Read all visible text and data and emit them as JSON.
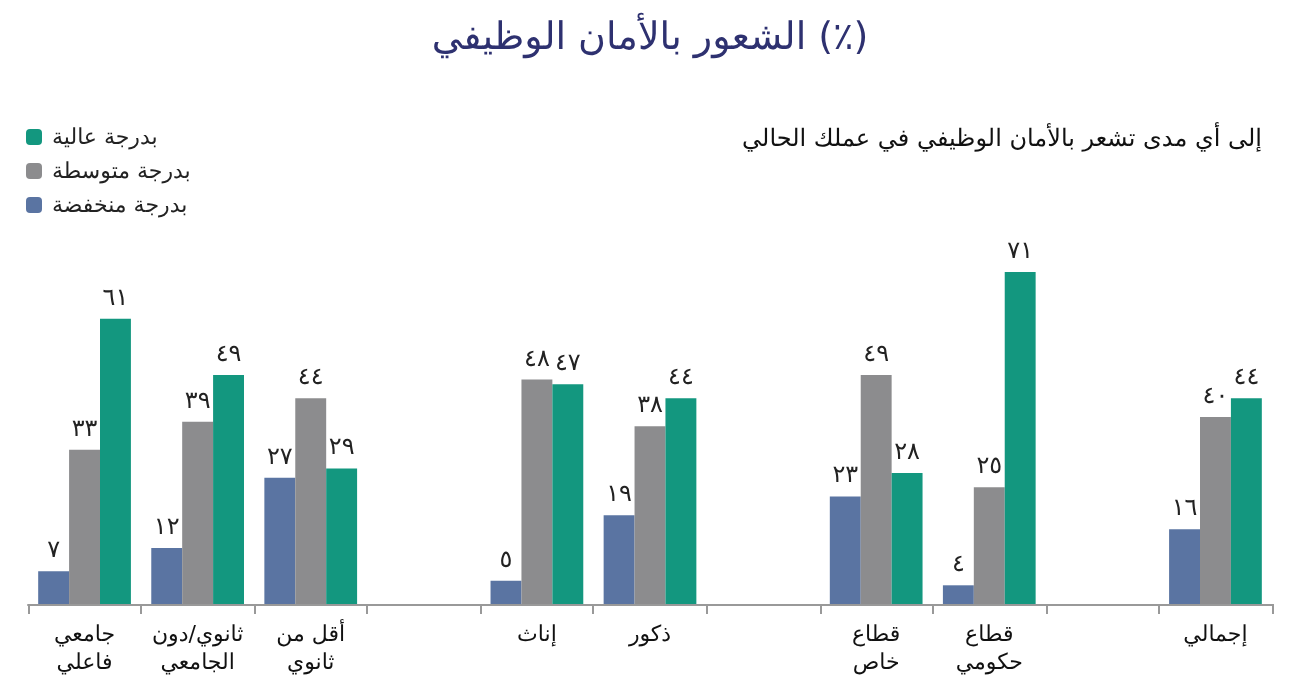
{
  "chart_data": {
    "type": "bar",
    "title": "الشعور بالأمان الوظيفي (٪)",
    "subtitle": "إلى أي مدى تشعر بالأمان الوظيفي في عملك الحالي",
    "categories": [
      "جامعي فاعلي",
      "ثانوي/دون الجامعي",
      "أقل من ثانوي",
      null,
      "إناث",
      "ذكور",
      null,
      "قطاع خاص",
      "قطاع حكومي",
      null,
      "إجمالي"
    ],
    "series": [
      {
        "name": "بدرجة منخفضة",
        "color": "#5a74a2",
        "values": [
          7,
          12,
          27,
          null,
          5,
          19,
          null,
          23,
          4,
          null,
          16
        ],
        "value_labels": [
          "٧",
          "١٢",
          "٢٧",
          null,
          "٥",
          "١٩",
          null,
          "٢٣",
          "٤",
          null,
          "١٦"
        ]
      },
      {
        "name": "بدرجة متوسطة",
        "color": "#8c8c8e",
        "values": [
          33,
          39,
          44,
          null,
          48,
          38,
          null,
          49,
          25,
          null,
          40
        ],
        "value_labels": [
          "٣٣",
          "٣٩",
          "٤٤",
          null,
          "٤٨",
          "٣٨",
          null,
          "٤٩",
          "٢٥",
          null,
          "٤٠"
        ]
      },
      {
        "name": "بدرجة عالية",
        "color": "#13977f",
        "values": [
          61,
          49,
          29,
          null,
          47,
          44,
          null,
          28,
          71,
          null,
          44
        ],
        "value_labels": [
          "٦١",
          "٤٩",
          "٢٩",
          null,
          "٤٧",
          "٤٤",
          null,
          "٢٨",
          "٧١",
          null,
          "٤٤"
        ]
      }
    ],
    "legend": "top left",
    "grid": false
  }
}
